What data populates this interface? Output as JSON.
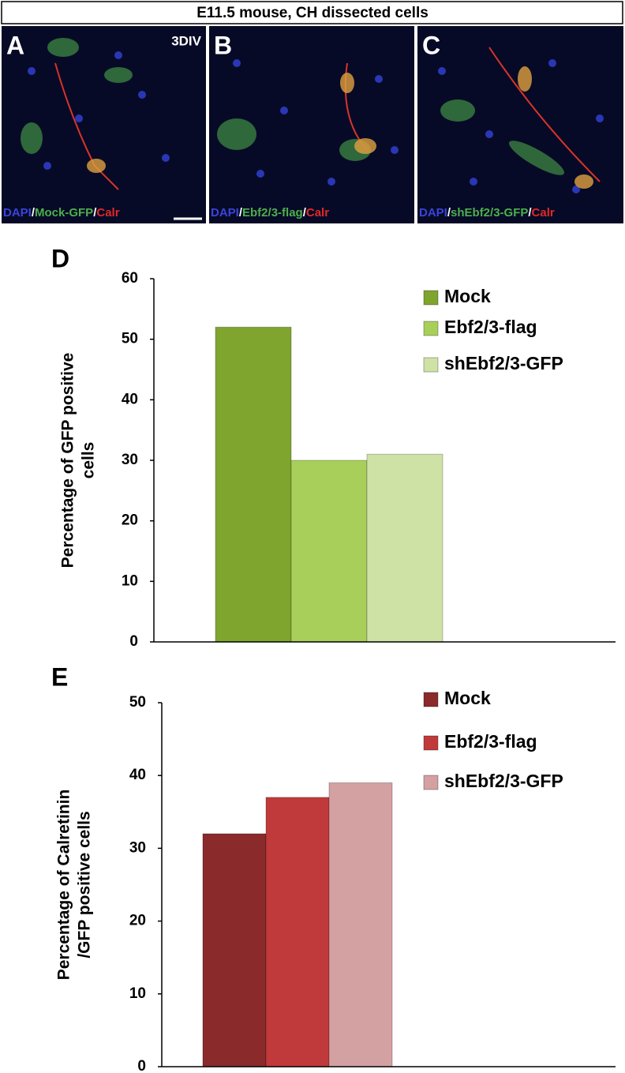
{
  "figure": {
    "title": "E11.5 mouse, CH dissected cells",
    "panels": [
      {
        "label": "A",
        "note": "3DIV",
        "caption": [
          "DAPI",
          "/",
          "Mock-GFP",
          "/",
          "Calr"
        ]
      },
      {
        "label": "B",
        "caption": [
          "DAPI",
          "/",
          "Ebf2/3-flag",
          "/",
          "Calr"
        ]
      },
      {
        "label": "C",
        "caption": [
          "DAPI",
          "/",
          "shEbf2/3-GFP",
          "/",
          "Calr"
        ]
      }
    ]
  },
  "chart_data": [
    {
      "type": "bar",
      "panel_label": "D",
      "ylabel": [
        "Percentage of GFP positive",
        "cells"
      ],
      "categories": [
        null
      ],
      "series": [
        {
          "name": "Mock",
          "color": "#7fa52e",
          "values": [
            52
          ]
        },
        {
          "name": "Ebf2/3-flag",
          "color": "#a9cf5b",
          "values": [
            30
          ]
        },
        {
          "name": "shEbf2/3-GFP",
          "color": "#cfe2a6",
          "values": [
            31
          ]
        }
      ],
      "ylim": [
        0,
        60
      ],
      "yticks": [
        0,
        10,
        20,
        30,
        40,
        50,
        60
      ],
      "legend": "upper right"
    },
    {
      "type": "bar",
      "panel_label": "E",
      "ylabel": [
        "Percentage of Calretinin",
        "/GFP positive cells"
      ],
      "categories": [
        null
      ],
      "series": [
        {
          "name": "Mock",
          "color": "#8a2a2a",
          "values": [
            32
          ]
        },
        {
          "name": "Ebf2/3-flag",
          "color": "#c03a3b",
          "values": [
            37
          ]
        },
        {
          "name": "shEbf2/3-GFP",
          "color": "#d4a1a3",
          "values": [
            39
          ]
        }
      ],
      "ylim": [
        0,
        50
      ],
      "yticks": [
        0,
        10,
        20,
        30,
        40,
        50
      ],
      "legend": "upper right"
    }
  ]
}
